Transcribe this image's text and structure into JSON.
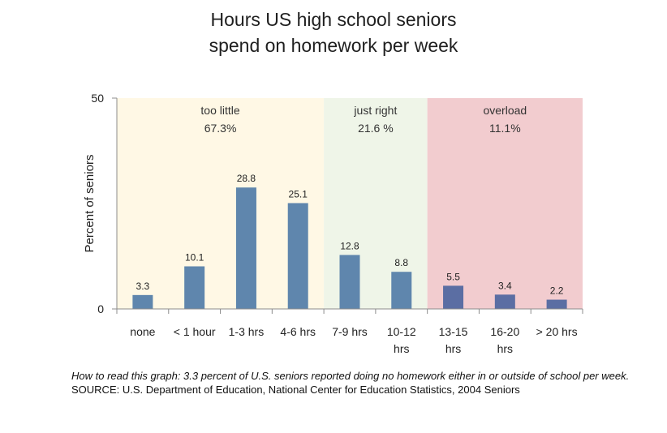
{
  "chart_data": {
    "type": "bar",
    "title_lines": [
      "Hours US high school seniors",
      "spend on homework per week"
    ],
    "ylabel": "Percent of seniors",
    "ylim": [
      0,
      50
    ],
    "yticks": [
      "0",
      "50"
    ],
    "categories": [
      [
        "none"
      ],
      [
        "< 1 hour"
      ],
      [
        "1-3 hrs"
      ],
      [
        "4-6 hrs"
      ],
      [
        "7-9 hrs"
      ],
      [
        "10-12",
        "hrs"
      ],
      [
        "13-15",
        "hrs"
      ],
      [
        "16-20",
        "hrs"
      ],
      [
        "> 20 hrs"
      ]
    ],
    "values": [
      3.3,
      10.1,
      28.8,
      25.1,
      12.8,
      8.8,
      5.5,
      3.4,
      2.2
    ],
    "value_labels": [
      "3.3",
      "10.1",
      "28.8",
      "25.1",
      "12.8",
      "8.8",
      "5.5",
      "3.4",
      "2.2"
    ],
    "bar_colors": [
      "#5f86ad",
      "#5f86ad",
      "#5f86ad",
      "#5f86ad",
      "#5f86ad",
      "#5f86ad",
      "#5b6ea3",
      "#5b6ea3",
      "#5b6ea3"
    ],
    "regions": [
      {
        "label": "too little",
        "value_label": "67.3%",
        "start": 0,
        "end": 3,
        "color": "#fff8e5"
      },
      {
        "label": "just right",
        "value_label": "21.6 %",
        "start": 4,
        "end": 5,
        "color": "#eff5e8"
      },
      {
        "label": "overload",
        "value_label": "11.1%",
        "start": 6,
        "end": 8,
        "color": "#f2cccf"
      }
    ],
    "grid": false
  },
  "footnote": {
    "howto": "How to read this graph: 3.3 percent of U.S. seniors reported doing no homework either in or outside of school per week.",
    "source": "SOURCE: U.S. Department  of Education, National Center for Education Statistics, 2004 Seniors"
  }
}
